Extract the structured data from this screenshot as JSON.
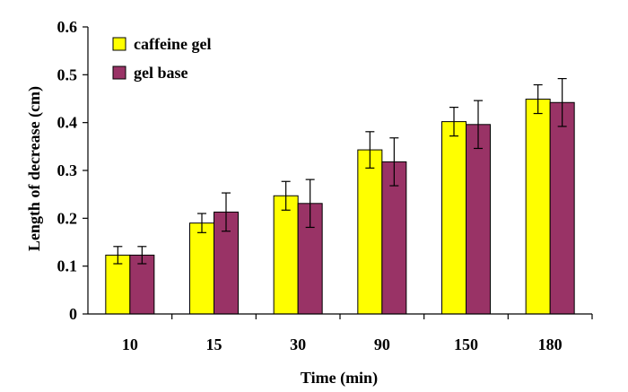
{
  "chart_data": {
    "type": "bar",
    "title": "",
    "xlabel": "Time (min)",
    "ylabel": "Length of decrease (cm)",
    "ylim": [
      0,
      0.6
    ],
    "yticks": [
      "0",
      "0.1",
      "0.2",
      "0.3",
      "0.4",
      "0.5",
      "0.6"
    ],
    "categories": [
      "10",
      "15",
      "30",
      "90",
      "150",
      "180"
    ],
    "series": [
      {
        "name": "caffeine gel",
        "color": "#ffff00",
        "values": [
          0.123,
          0.19,
          0.247,
          0.343,
          0.402,
          0.449
        ],
        "errors": [
          0.018,
          0.02,
          0.03,
          0.038,
          0.03,
          0.03
        ]
      },
      {
        "name": "gel base",
        "color": "#993366",
        "values": [
          0.123,
          0.213,
          0.231,
          0.318,
          0.396,
          0.442
        ],
        "errors": [
          0.018,
          0.04,
          0.05,
          0.05,
          0.05,
          0.05
        ]
      }
    ],
    "legend": "top-left",
    "grid": false
  }
}
